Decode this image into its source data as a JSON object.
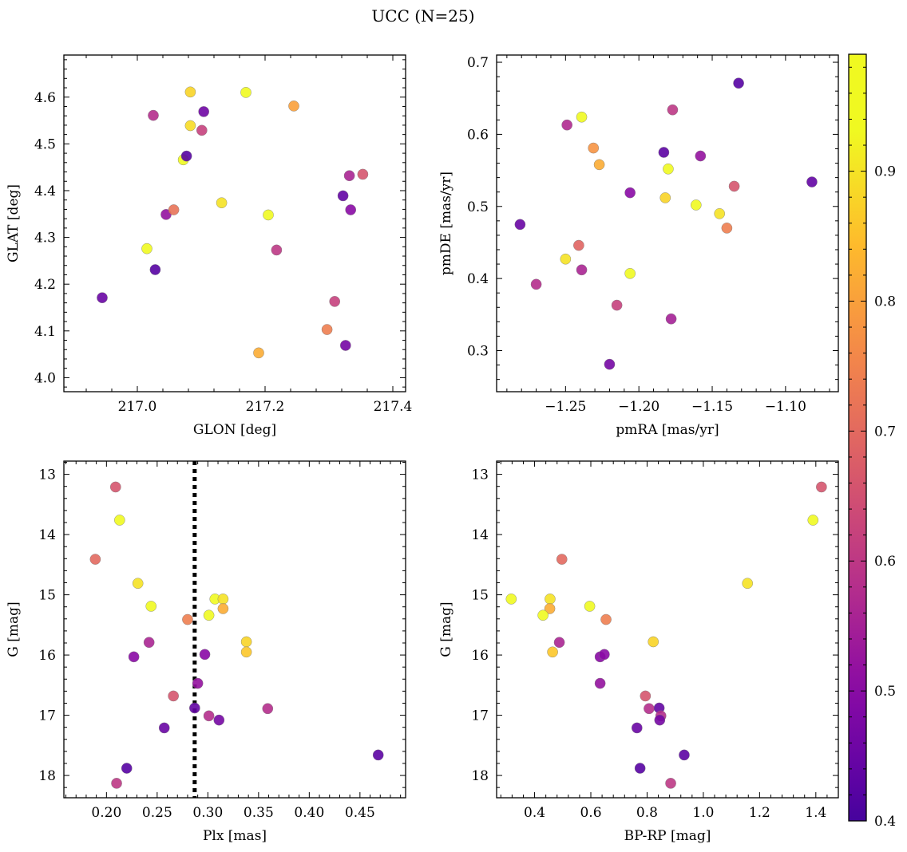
{
  "figure": {
    "title": "UCC (N=25)"
  },
  "colorbar": {
    "colormap": "plasma",
    "range": [
      0.4,
      0.99
    ],
    "ticks": [
      0.4,
      0.5,
      0.6,
      0.7,
      0.8,
      0.9
    ],
    "tick_labels": [
      "0.4",
      "0.5",
      "0.6",
      "0.7",
      "0.8",
      "0.9"
    ]
  },
  "chart_data": [
    {
      "type": "scatter",
      "panel": "top-left",
      "xlabel": "GLON [deg]",
      "ylabel": "GLAT [deg]",
      "xlim": [
        216.885,
        217.42
      ],
      "ylim": [
        3.97,
        4.69
      ],
      "yinverted": false,
      "xticks": [
        217.0,
        217.2,
        217.4
      ],
      "xtick_labels": [
        "217.0",
        "217.2",
        "217.4"
      ],
      "yticks": [
        4.0,
        4.1,
        4.2,
        4.3,
        4.4,
        4.5,
        4.6
      ],
      "ytick_labels": [
        "4.0",
        "4.1",
        "4.2",
        "4.3",
        "4.4",
        "4.5",
        "4.6"
      ],
      "points": [
        {
          "x": 216.945,
          "y": 4.171,
          "c": 0.45
        },
        {
          "x": 217.015,
          "y": 4.276,
          "c": 0.97
        },
        {
          "x": 217.025,
          "y": 4.561,
          "c": 0.58
        },
        {
          "x": 217.028,
          "y": 4.231,
          "c": 0.42
        },
        {
          "x": 217.045,
          "y": 4.349,
          "c": 0.52
        },
        {
          "x": 217.057,
          "y": 4.359,
          "c": 0.72
        },
        {
          "x": 217.072,
          "y": 4.466,
          "c": 0.985
        },
        {
          "x": 217.077,
          "y": 4.474,
          "c": 0.42
        },
        {
          "x": 217.083,
          "y": 4.611,
          "c": 0.88
        },
        {
          "x": 217.083,
          "y": 4.539,
          "c": 0.89
        },
        {
          "x": 217.101,
          "y": 4.529,
          "c": 0.62
        },
        {
          "x": 217.104,
          "y": 4.569,
          "c": 0.46
        },
        {
          "x": 217.132,
          "y": 4.374,
          "c": 0.9
        },
        {
          "x": 217.17,
          "y": 4.61,
          "c": 0.975
        },
        {
          "x": 217.19,
          "y": 4.053,
          "c": 0.82
        },
        {
          "x": 217.205,
          "y": 4.348,
          "c": 0.94
        },
        {
          "x": 217.218,
          "y": 4.273,
          "c": 0.6
        },
        {
          "x": 217.245,
          "y": 4.581,
          "c": 0.8
        },
        {
          "x": 217.297,
          "y": 4.103,
          "c": 0.74
        },
        {
          "x": 217.309,
          "y": 4.163,
          "c": 0.62
        },
        {
          "x": 217.322,
          "y": 4.389,
          "c": 0.44
        },
        {
          "x": 217.326,
          "y": 4.069,
          "c": 0.47
        },
        {
          "x": 217.332,
          "y": 4.432,
          "c": 0.56
        },
        {
          "x": 217.334,
          "y": 4.359,
          "c": 0.5
        },
        {
          "x": 217.353,
          "y": 4.435,
          "c": 0.66
        }
      ]
    },
    {
      "type": "scatter",
      "panel": "top-right",
      "xlabel": "pmRA [mas/yr]",
      "ylabel": "pmDE [mas/yr]",
      "xlim": [
        -1.297,
        -1.064
      ],
      "ylim": [
        0.243,
        0.71
      ],
      "yinverted": false,
      "xticks": [
        -1.25,
        -1.2,
        -1.15,
        -1.1
      ],
      "xtick_labels": [
        "−1.25",
        "−1.20",
        "−1.15",
        "−1.10"
      ],
      "yticks": [
        0.3,
        0.4,
        0.5,
        0.6,
        0.7
      ],
      "ytick_labels": [
        "0.3",
        "0.4",
        "0.5",
        "0.6",
        "0.7"
      ],
      "points": [
        {
          "x": -1.281,
          "y": 0.475,
          "c": 0.45
        },
        {
          "x": -1.27,
          "y": 0.392,
          "c": 0.58
        },
        {
          "x": -1.25,
          "y": 0.427,
          "c": 0.9
        },
        {
          "x": -1.249,
          "y": 0.613,
          "c": 0.57
        },
        {
          "x": -1.241,
          "y": 0.446,
          "c": 0.69
        },
        {
          "x": -1.239,
          "y": 0.412,
          "c": 0.56
        },
        {
          "x": -1.239,
          "y": 0.624,
          "c": 0.96
        },
        {
          "x": -1.231,
          "y": 0.581,
          "c": 0.78
        },
        {
          "x": -1.227,
          "y": 0.558,
          "c": 0.82
        },
        {
          "x": -1.22,
          "y": 0.281,
          "c": 0.47
        },
        {
          "x": -1.215,
          "y": 0.363,
          "c": 0.62
        },
        {
          "x": -1.206,
          "y": 0.519,
          "c": 0.5
        },
        {
          "x": -1.206,
          "y": 0.407,
          "c": 0.975
        },
        {
          "x": -1.183,
          "y": 0.575,
          "c": 0.43
        },
        {
          "x": -1.182,
          "y": 0.512,
          "c": 0.88
        },
        {
          "x": -1.18,
          "y": 0.552,
          "c": 0.985
        },
        {
          "x": -1.178,
          "y": 0.344,
          "c": 0.55
        },
        {
          "x": -1.177,
          "y": 0.634,
          "c": 0.6
        },
        {
          "x": -1.161,
          "y": 0.502,
          "c": 0.94
        },
        {
          "x": -1.158,
          "y": 0.57,
          "c": 0.52
        },
        {
          "x": -1.145,
          "y": 0.49,
          "c": 0.9
        },
        {
          "x": -1.14,
          "y": 0.47,
          "c": 0.74
        },
        {
          "x": -1.135,
          "y": 0.528,
          "c": 0.66
        },
        {
          "x": -1.132,
          "y": 0.671,
          "c": 0.42
        },
        {
          "x": -1.082,
          "y": 0.534,
          "c": 0.44
        }
      ]
    },
    {
      "type": "scatter",
      "panel": "bottom-left",
      "xlabel": "Plx [mas]",
      "ylabel": "G [mag]",
      "xlim": [
        0.158,
        0.495
      ],
      "ylim": [
        12.78,
        18.37
      ],
      "yinverted": true,
      "xticks": [
        0.2,
        0.25,
        0.3,
        0.35,
        0.4,
        0.45
      ],
      "xtick_labels": [
        "0.20",
        "0.25",
        "0.30",
        "0.35",
        "0.40",
        "0.45"
      ],
      "yticks": [
        13,
        14,
        15,
        16,
        17,
        18
      ],
      "ytick_labels": [
        "13",
        "14",
        "15",
        "16",
        "17",
        "18"
      ],
      "vline": {
        "x": 0.287,
        "style": "dotted",
        "color": "#000000"
      },
      "points": [
        {
          "x": 0.209,
          "y": 13.21,
          "c": 0.66
        },
        {
          "x": 0.213,
          "y": 13.76,
          "c": 0.975
        },
        {
          "x": 0.189,
          "y": 14.41,
          "c": 0.7
        },
        {
          "x": 0.231,
          "y": 14.81,
          "c": 0.9
        },
        {
          "x": 0.244,
          "y": 15.19,
          "c": 0.96
        },
        {
          "x": 0.307,
          "y": 15.07,
          "c": 0.975
        },
        {
          "x": 0.315,
          "y": 15.07,
          "c": 0.9
        },
        {
          "x": 0.315,
          "y": 15.23,
          "c": 0.82
        },
        {
          "x": 0.301,
          "y": 15.34,
          "c": 0.94
        },
        {
          "x": 0.28,
          "y": 15.41,
          "c": 0.74
        },
        {
          "x": 0.242,
          "y": 15.79,
          "c": 0.56
        },
        {
          "x": 0.338,
          "y": 15.78,
          "c": 0.88
        },
        {
          "x": 0.338,
          "y": 15.95,
          "c": 0.86
        },
        {
          "x": 0.297,
          "y": 15.99,
          "c": 0.5
        },
        {
          "x": 0.227,
          "y": 16.03,
          "c": 0.5
        },
        {
          "x": 0.29,
          "y": 16.47,
          "c": 0.52
        },
        {
          "x": 0.266,
          "y": 16.68,
          "c": 0.66
        },
        {
          "x": 0.287,
          "y": 16.88,
          "c": 0.44
        },
        {
          "x": 0.359,
          "y": 16.89,
          "c": 0.58
        },
        {
          "x": 0.301,
          "y": 17.01,
          "c": 0.58
        },
        {
          "x": 0.311,
          "y": 17.08,
          "c": 0.47
        },
        {
          "x": 0.257,
          "y": 17.21,
          "c": 0.45
        },
        {
          "x": 0.468,
          "y": 17.66,
          "c": 0.43
        },
        {
          "x": 0.22,
          "y": 17.88,
          "c": 0.42
        },
        {
          "x": 0.21,
          "y": 18.13,
          "c": 0.6
        }
      ]
    },
    {
      "type": "scatter",
      "panel": "bottom-right",
      "xlabel": "BP-RP [mag]",
      "ylabel": "G [mag]",
      "xlim": [
        0.265,
        1.48
      ],
      "ylim": [
        12.78,
        18.37
      ],
      "yinverted": true,
      "xticks": [
        0.4,
        0.6,
        0.8,
        1.0,
        1.2,
        1.4
      ],
      "xtick_labels": [
        "0.4",
        "0.6",
        "0.8",
        "1.0",
        "1.2",
        "1.4"
      ],
      "yticks": [
        13,
        14,
        15,
        16,
        17,
        18
      ],
      "ytick_labels": [
        "13",
        "14",
        "15",
        "16",
        "17",
        "18"
      ],
      "points": [
        {
          "x": 1.42,
          "y": 13.21,
          "c": 0.66
        },
        {
          "x": 1.39,
          "y": 13.76,
          "c": 0.975
        },
        {
          "x": 0.497,
          "y": 14.41,
          "c": 0.7
        },
        {
          "x": 1.157,
          "y": 14.81,
          "c": 0.9
        },
        {
          "x": 0.317,
          "y": 15.07,
          "c": 0.975
        },
        {
          "x": 0.455,
          "y": 15.07,
          "c": 0.9
        },
        {
          "x": 0.454,
          "y": 15.23,
          "c": 0.82
        },
        {
          "x": 0.596,
          "y": 15.19,
          "c": 0.96
        },
        {
          "x": 0.43,
          "y": 15.34,
          "c": 0.94
        },
        {
          "x": 0.654,
          "y": 15.41,
          "c": 0.74
        },
        {
          "x": 0.488,
          "y": 15.79,
          "c": 0.56
        },
        {
          "x": 0.822,
          "y": 15.78,
          "c": 0.88
        },
        {
          "x": 0.464,
          "y": 15.95,
          "c": 0.86
        },
        {
          "x": 0.633,
          "y": 16.03,
          "c": 0.5
        },
        {
          "x": 0.648,
          "y": 15.99,
          "c": 0.5
        },
        {
          "x": 0.633,
          "y": 16.47,
          "c": 0.52
        },
        {
          "x": 0.794,
          "y": 16.68,
          "c": 0.66
        },
        {
          "x": 0.807,
          "y": 16.89,
          "c": 0.58
        },
        {
          "x": 0.843,
          "y": 16.88,
          "c": 0.44
        },
        {
          "x": 0.849,
          "y": 17.01,
          "c": 0.58
        },
        {
          "x": 0.845,
          "y": 17.08,
          "c": 0.47
        },
        {
          "x": 0.764,
          "y": 17.21,
          "c": 0.45
        },
        {
          "x": 0.932,
          "y": 17.66,
          "c": 0.43
        },
        {
          "x": 0.775,
          "y": 17.88,
          "c": 0.42
        },
        {
          "x": 0.884,
          "y": 18.13,
          "c": 0.6
        }
      ]
    }
  ]
}
